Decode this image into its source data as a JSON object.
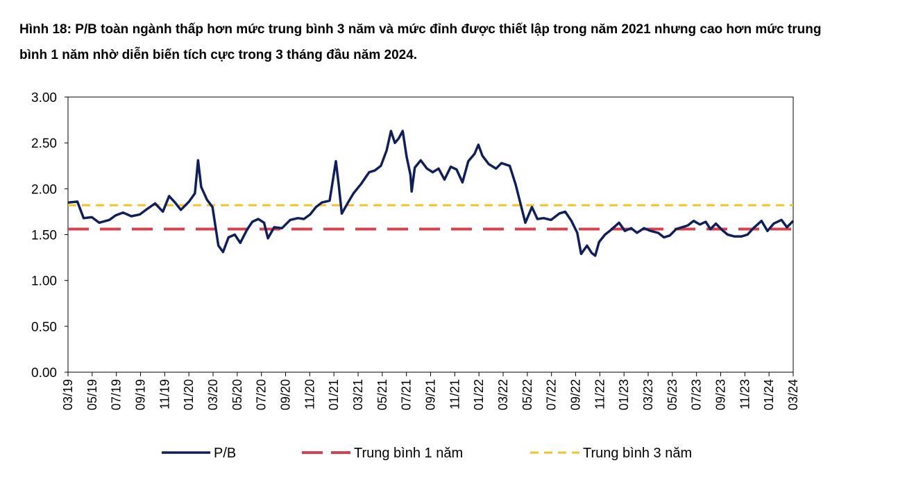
{
  "title": "Hình 18: P/B toàn ngành thấp hơn mức trung bình 3 năm và mức đỉnh được thiết lập trong năm 2021 nhưng cao hơn mức trung bình 1 năm nhờ diễn biến tích cực trong 3 tháng đầu năm 2024.",
  "chart_data": {
    "type": "line",
    "title": "",
    "xlabel": "",
    "ylabel": "",
    "ylim": [
      0,
      3
    ],
    "y_ticks": [
      "0.00",
      "0.50",
      "1.00",
      "1.50",
      "2.00",
      "2.50",
      "3.00"
    ],
    "x_ticks": [
      "03/19",
      "05/19",
      "07/19",
      "09/19",
      "11/19",
      "01/20",
      "03/20",
      "05/20",
      "07/20",
      "09/20",
      "11/20",
      "01/21",
      "03/21",
      "05/21",
      "07/21",
      "09/21",
      "11/21",
      "01/22",
      "03/22",
      "05/22",
      "07/22",
      "09/22",
      "11/22",
      "01/23",
      "03/23",
      "05/23",
      "07/23",
      "09/23",
      "11/23",
      "01/24",
      "03/24"
    ],
    "grid": false,
    "legend_position": "bottom",
    "x_range": [
      "2019-03-01",
      "2024-03-31"
    ],
    "series": [
      {
        "name": "P/B",
        "color": "#0f1f5c",
        "style": "solid",
        "points": [
          [
            "2019-03-01",
            1.85
          ],
          [
            "2019-03-25",
            1.86
          ],
          [
            "2019-04-10",
            1.68
          ],
          [
            "2019-05-01",
            1.69
          ],
          [
            "2019-05-20",
            1.63
          ],
          [
            "2019-06-15",
            1.66
          ],
          [
            "2019-07-01",
            1.71
          ],
          [
            "2019-07-20",
            1.74
          ],
          [
            "2019-08-10",
            1.7
          ],
          [
            "2019-09-01",
            1.72
          ],
          [
            "2019-09-20",
            1.78
          ],
          [
            "2019-10-10",
            1.84
          ],
          [
            "2019-10-30",
            1.75
          ],
          [
            "2019-11-15",
            1.92
          ],
          [
            "2019-11-30",
            1.85
          ],
          [
            "2019-12-15",
            1.77
          ],
          [
            "2020-01-05",
            1.86
          ],
          [
            "2020-01-20",
            1.95
          ],
          [
            "2020-01-28",
            2.31
          ],
          [
            "2020-02-05",
            2.02
          ],
          [
            "2020-02-20",
            1.88
          ],
          [
            "2020-03-05",
            1.8
          ],
          [
            "2020-03-20",
            1.38
          ],
          [
            "2020-04-01",
            1.31
          ],
          [
            "2020-04-15",
            1.47
          ],
          [
            "2020-05-01",
            1.5
          ],
          [
            "2020-05-15",
            1.41
          ],
          [
            "2020-06-01",
            1.55
          ],
          [
            "2020-06-15",
            1.64
          ],
          [
            "2020-06-30",
            1.67
          ],
          [
            "2020-07-15",
            1.63
          ],
          [
            "2020-07-25",
            1.46
          ],
          [
            "2020-08-10",
            1.58
          ],
          [
            "2020-08-30",
            1.57
          ],
          [
            "2020-09-20",
            1.66
          ],
          [
            "2020-10-10",
            1.68
          ],
          [
            "2020-10-25",
            1.67
          ],
          [
            "2020-11-10",
            1.72
          ],
          [
            "2020-11-25",
            1.8
          ],
          [
            "2020-12-10",
            1.85
          ],
          [
            "2020-12-30",
            1.87
          ],
          [
            "2021-01-15",
            2.3
          ],
          [
            "2021-01-22",
            2.05
          ],
          [
            "2021-01-30",
            1.73
          ],
          [
            "2021-02-15",
            1.85
          ],
          [
            "2021-03-01",
            1.95
          ],
          [
            "2021-03-20",
            2.05
          ],
          [
            "2021-04-10",
            2.18
          ],
          [
            "2021-04-25",
            2.2
          ],
          [
            "2021-05-10",
            2.25
          ],
          [
            "2021-05-25",
            2.42
          ],
          [
            "2021-06-05",
            2.63
          ],
          [
            "2021-06-15",
            2.5
          ],
          [
            "2021-06-25",
            2.55
          ],
          [
            "2021-07-05",
            2.63
          ],
          [
            "2021-07-15",
            2.35
          ],
          [
            "2021-07-25",
            2.15
          ],
          [
            "2021-07-28",
            1.97
          ],
          [
            "2021-08-05",
            2.23
          ],
          [
            "2021-08-20",
            2.31
          ],
          [
            "2021-09-05",
            2.22
          ],
          [
            "2021-09-20",
            2.18
          ],
          [
            "2021-10-05",
            2.22
          ],
          [
            "2021-10-20",
            2.1
          ],
          [
            "2021-11-05",
            2.24
          ],
          [
            "2021-11-20",
            2.21
          ],
          [
            "2021-12-05",
            2.07
          ],
          [
            "2021-12-20",
            2.3
          ],
          [
            "2022-01-05",
            2.38
          ],
          [
            "2022-01-15",
            2.48
          ],
          [
            "2022-01-25",
            2.36
          ],
          [
            "2022-02-10",
            2.27
          ],
          [
            "2022-03-01",
            2.22
          ],
          [
            "2022-03-15",
            2.28
          ],
          [
            "2022-04-05",
            2.25
          ],
          [
            "2022-04-20",
            2.05
          ],
          [
            "2022-05-05",
            1.8
          ],
          [
            "2022-05-15",
            1.63
          ],
          [
            "2022-06-01",
            1.8
          ],
          [
            "2022-06-15",
            1.67
          ],
          [
            "2022-07-01",
            1.68
          ],
          [
            "2022-07-20",
            1.66
          ],
          [
            "2022-08-10",
            1.73
          ],
          [
            "2022-08-25",
            1.75
          ],
          [
            "2022-09-10",
            1.65
          ],
          [
            "2022-09-25",
            1.52
          ],
          [
            "2022-10-05",
            1.29
          ],
          [
            "2022-10-20",
            1.38
          ],
          [
            "2022-11-01",
            1.3
          ],
          [
            "2022-11-10",
            1.27
          ],
          [
            "2022-11-20",
            1.42
          ],
          [
            "2022-12-05",
            1.5
          ],
          [
            "2022-12-20",
            1.55
          ],
          [
            "2023-01-10",
            1.63
          ],
          [
            "2023-01-25",
            1.54
          ],
          [
            "2023-02-10",
            1.57
          ],
          [
            "2023-02-25",
            1.52
          ],
          [
            "2023-03-15",
            1.57
          ],
          [
            "2023-04-01",
            1.54
          ],
          [
            "2023-04-20",
            1.52
          ],
          [
            "2023-05-05",
            1.47
          ],
          [
            "2023-05-20",
            1.49
          ],
          [
            "2023-06-05",
            1.56
          ],
          [
            "2023-06-20",
            1.58
          ],
          [
            "2023-07-05",
            1.6
          ],
          [
            "2023-07-20",
            1.65
          ],
          [
            "2023-08-05",
            1.61
          ],
          [
            "2023-08-20",
            1.64
          ],
          [
            "2023-09-01",
            1.56
          ],
          [
            "2023-09-15",
            1.62
          ],
          [
            "2023-10-01",
            1.55
          ],
          [
            "2023-10-15",
            1.5
          ],
          [
            "2023-11-01",
            1.48
          ],
          [
            "2023-11-20",
            1.48
          ],
          [
            "2023-12-05",
            1.5
          ],
          [
            "2023-12-20",
            1.57
          ],
          [
            "2024-01-10",
            1.65
          ],
          [
            "2024-01-25",
            1.54
          ],
          [
            "2024-02-10",
            1.62
          ],
          [
            "2024-03-01",
            1.66
          ],
          [
            "2024-03-15",
            1.58
          ],
          [
            "2024-03-31",
            1.65
          ]
        ]
      },
      {
        "name": "Trung bình 1 năm",
        "color": "#d9404e",
        "style": "dashed",
        "constant": 1.56
      },
      {
        "name": "Trung bình 3 năm",
        "color": "#f2c12e",
        "style": "dashed",
        "constant": 1.82
      }
    ]
  }
}
